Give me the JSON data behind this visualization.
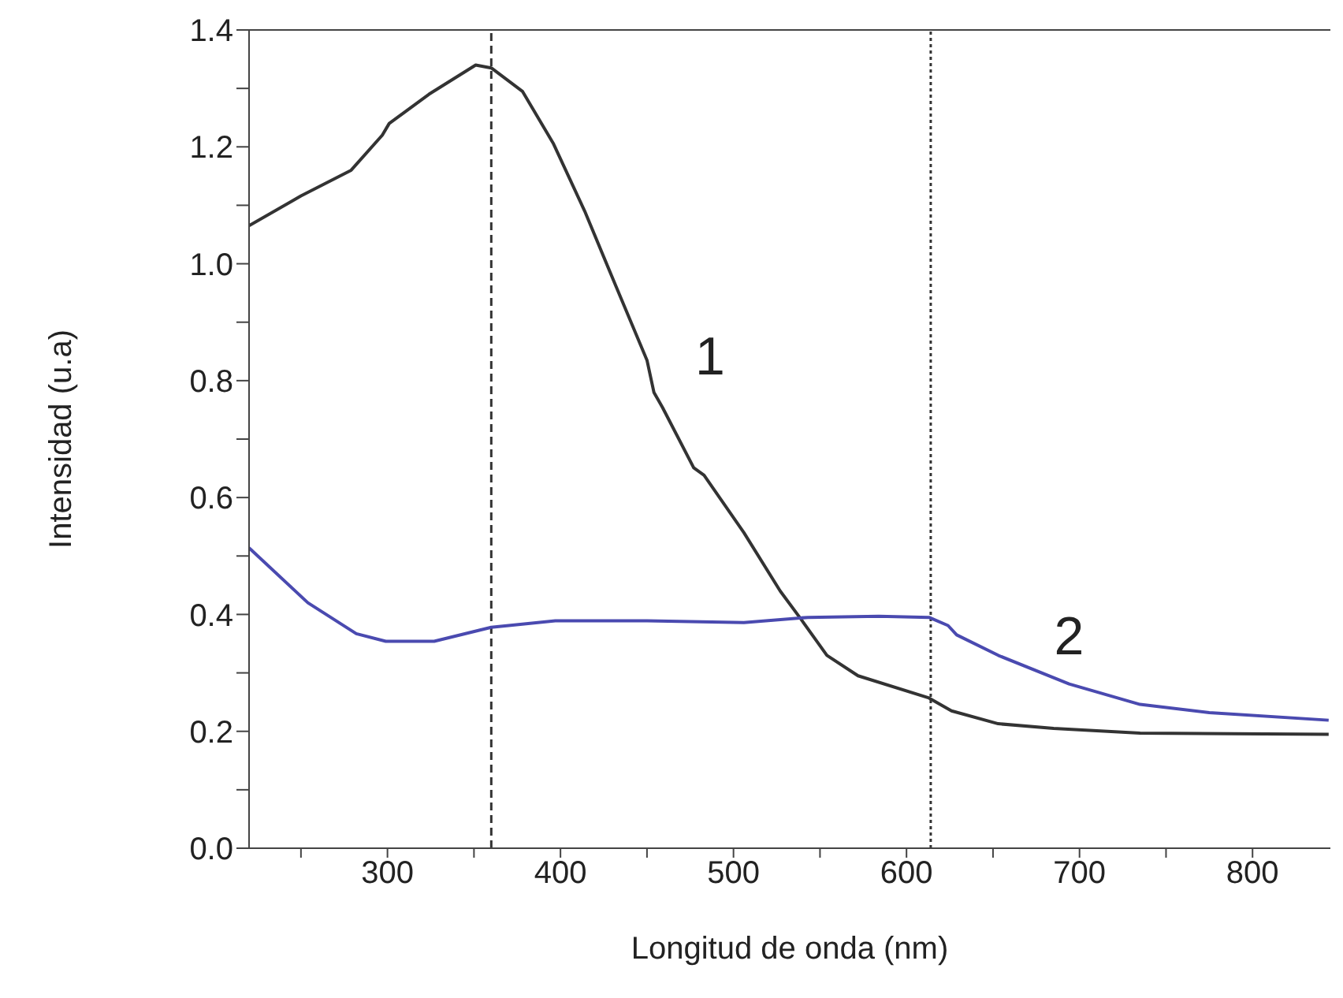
{
  "chart_data": {
    "type": "line",
    "xlabel": "Longitud de onda (nm)",
    "ylabel": "Intensidad (u.a)",
    "xlim": [
      220,
      845
    ],
    "ylim": [
      0,
      1.4
    ],
    "xticks": [
      {
        "value": 250,
        "label": null
      },
      300,
      {
        "value": 350,
        "label": null
      },
      400,
      {
        "value": 450,
        "label": null
      },
      500,
      {
        "value": 550,
        "label": null
      },
      600,
      {
        "value": 650,
        "label": null
      },
      700,
      {
        "value": 750,
        "label": null
      },
      800
    ],
    "yticks": [
      {
        "value": 0,
        "label": "0.0"
      },
      {
        "value": 0.1,
        "label": null
      },
      0.2,
      {
        "value": 0.3,
        "label": null
      },
      0.4,
      {
        "value": 0.5,
        "label": null
      },
      0.6,
      {
        "value": 0.7,
        "label": null
      },
      0.8,
      {
        "value": 0.9,
        "label": null
      },
      {
        "value": 1,
        "label": "1.0"
      },
      {
        "value": 1.1,
        "label": null
      },
      1.2,
      {
        "value": 1.3,
        "label": null
      },
      1.4
    ],
    "grid": false,
    "legend": false,
    "marker": "none",
    "line_style": "solid",
    "series": [
      {
        "name": "1",
        "color": "#333333",
        "x": [
          220,
          250,
          279,
          297,
          301,
          324,
          351,
          360,
          378,
          396,
          414,
          432,
          450,
          454,
          459,
          477,
          483,
          506,
          527,
          539,
          554,
          572,
          613,
          626,
          653,
          685,
          735,
          844
        ],
        "values": [
          1.065,
          1.116,
          1.16,
          1.22,
          1.24,
          1.29,
          1.34,
          1.335,
          1.295,
          1.205,
          1.09,
          0.962,
          0.835,
          0.78,
          0.754,
          0.651,
          0.638,
          0.54,
          0.44,
          0.392,
          0.33,
          0.295,
          0.257,
          0.235,
          0.213,
          0.205,
          0.197,
          0.195
        ]
      },
      {
        "name": "2",
        "color": "#4a4ab0",
        "x": [
          220,
          254,
          282,
          299,
          327,
          360,
          397,
          450,
          506,
          543,
          584,
          613,
          624,
          629,
          653,
          694,
          735,
          775,
          844
        ],
        "values": [
          0.514,
          0.42,
          0.367,
          0.354,
          0.354,
          0.378,
          0.389,
          0.389,
          0.386,
          0.395,
          0.397,
          0.395,
          0.381,
          0.365,
          0.33,
          0.281,
          0.246,
          0.232,
          0.219
        ]
      }
    ],
    "ref_lines": [
      {
        "axis": "x",
        "value": 360,
        "color": "#333333",
        "line_style": "dashed"
      },
      {
        "axis": "x",
        "value": 614,
        "color": "#333333",
        "line_style": "dotted"
      }
    ]
  }
}
